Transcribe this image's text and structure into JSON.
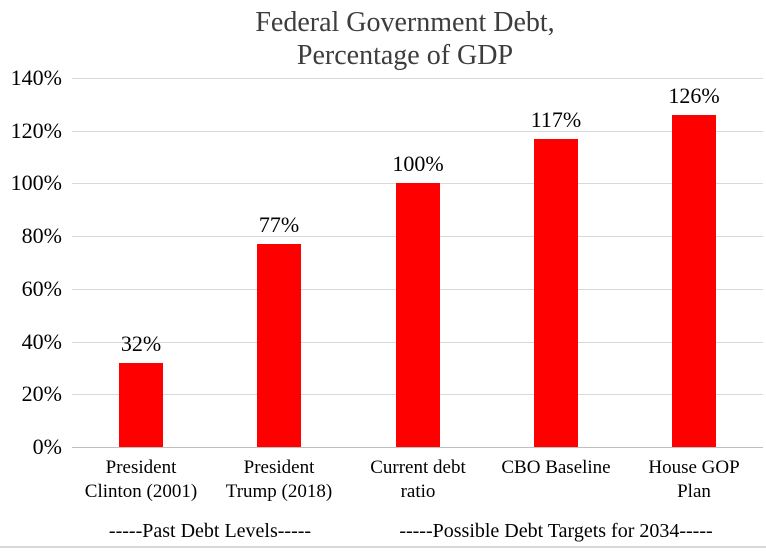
{
  "title": {
    "line1": "Federal Government Debt,",
    "line2": "Percentage of GDP"
  },
  "colors": {
    "bar": "#ff0000",
    "gridline": "#d9d9d9",
    "baseline": "#bfbfbf",
    "title_text": "#3d3d3d",
    "label_text": "#000000",
    "bottom_divider": "#d9d9d9"
  },
  "chart_data": {
    "type": "bar",
    "title": "Federal Government Debt, Percentage of GDP",
    "categories": [
      "President Clinton (2001)",
      "President Trump (2018)",
      "Current debt ratio",
      "CBO Baseline",
      "House GOP Plan"
    ],
    "categories_display": [
      "President\nClinton (2001)",
      "President\nTrump (2018)",
      "Current debt\nratio",
      "CBO Baseline",
      "House GOP\nPlan"
    ],
    "values": [
      32,
      77,
      100,
      117,
      126
    ],
    "data_labels": [
      "32%",
      "77%",
      "100%",
      "117%",
      "126%"
    ],
    "xlabel": "",
    "ylabel": "",
    "ylim": [
      0,
      140
    ],
    "ytick_interval": 20,
    "yticks": [
      "0%",
      "20%",
      "40%",
      "60%",
      "80%",
      "100%",
      "120%",
      "140%"
    ],
    "grid": true,
    "legend": "none",
    "bar_color": "#ff0000",
    "group_labels": [
      {
        "label": "-----Past Debt Levels-----",
        "span": [
          0,
          1
        ]
      },
      {
        "label": "-----Possible Debt Targets for 2034-----",
        "span": [
          2,
          4
        ]
      }
    ]
  }
}
